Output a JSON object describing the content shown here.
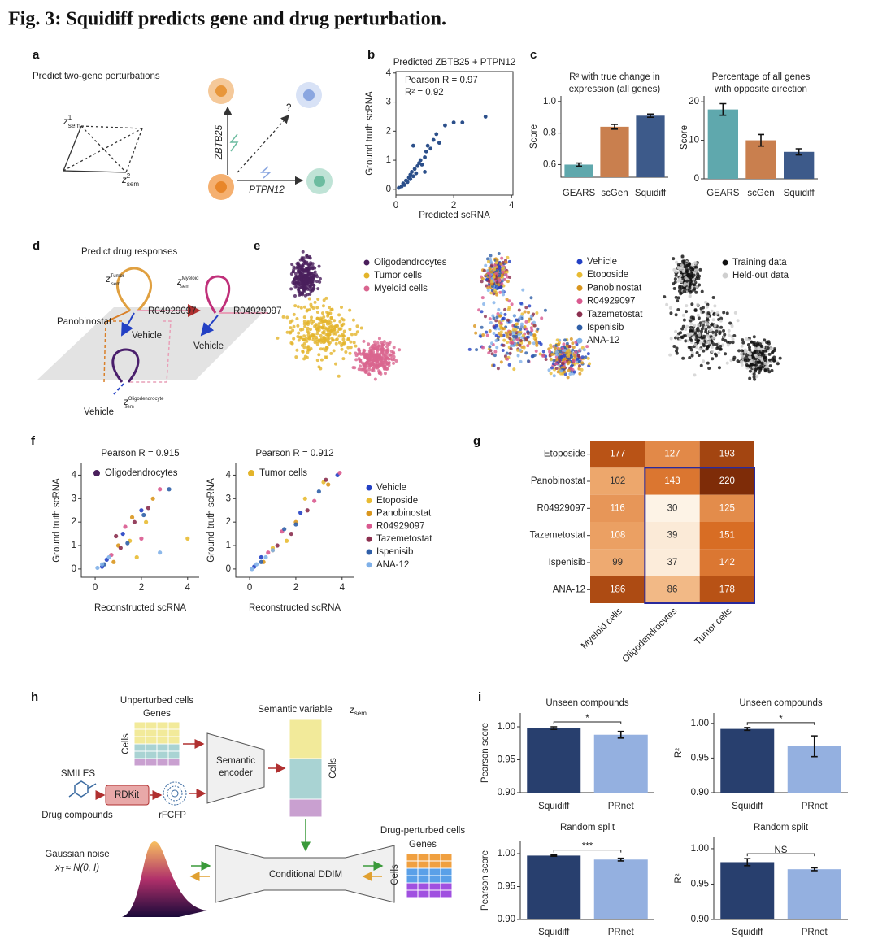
{
  "figure_title": "Fig. 3: Squidiff predicts gene and drug perturbation.",
  "panel_labels": [
    "a",
    "b",
    "c",
    "d",
    "e",
    "f",
    "g",
    "h",
    "i"
  ],
  "panel_a": {
    "heading": "Predict two-gene perturbations",
    "latents": [
      {
        "z": "z",
        "sup": "1",
        "sub": "sem"
      },
      {
        "z": "z",
        "sup": "2",
        "sub": "sem"
      }
    ],
    "genes": [
      "ZBTB25",
      "PTPN12"
    ],
    "unknown": "?"
  },
  "panel_d": {
    "heading": "Predict drug responses",
    "latents": [
      {
        "z": "z",
        "sup": "Tumor",
        "sub": "sem"
      },
      {
        "z": "z",
        "sup": "Myeloid",
        "sub": "sem"
      },
      {
        "z": "z",
        "sup": "Oligodendrocyte",
        "sub": "sem"
      }
    ],
    "labels": [
      "Panobinostat",
      "R04929097",
      "Vehicle",
      "R04929097",
      "Vehicle",
      "Vehicle"
    ]
  },
  "panel_e": {
    "cell_types": {
      "names": [
        "Oligodendrocytes",
        "Tumor cells",
        "Myeloid cells"
      ],
      "colors": [
        "#4a1f5c",
        "#e3b42a",
        "#d9658f"
      ]
    },
    "split": {
      "names": [
        "Training data",
        "Held-out data"
      ],
      "colors": [
        "#111111",
        "#cfcfcf"
      ]
    }
  },
  "drug_legend": [
    "Vehicle",
    "Etoposide",
    "Panobinostat",
    "R04929097",
    "Tazemetostat",
    "Ispenisib",
    "ANA-12"
  ],
  "panel_h": {
    "unperturbed": "Unperturbed cells",
    "genes": "Genes",
    "cells": "Cells",
    "semantic_variable": "Semantic variable",
    "z_sem": {
      "z": "z",
      "sub": "sem"
    },
    "encoder": [
      "Semantic",
      "encoder"
    ],
    "smiles": "SMILES",
    "rdkit": "RDKit",
    "drug_compounds": "Drug compounds",
    "fingerprint": "rFCFP",
    "noise": "Gaussian noise",
    "noise_formula": {
      "x": "x",
      "sub": "T",
      "rest": "≈ N(0, I)"
    },
    "ddim": "Conditional DDIM",
    "perturbed": "Drug-perturbed cells"
  },
  "chart_data": [
    {
      "type": "scatter",
      "title": "Predicted ZBTB25 + PTPN12",
      "xlabel": "Predicted scRNA",
      "ylabel": "Ground truth scRNA",
      "annotations": [
        "Pearson R = 0.97",
        "R² = 0.92"
      ],
      "color": "#2b4f8a",
      "xlim": [
        0,
        4.05
      ],
      "ylim": [
        -0.2,
        4.05
      ],
      "xticks": [
        0,
        2,
        4
      ],
      "yticks": [
        0,
        1,
        2,
        3,
        4
      ],
      "x": [
        0.1,
        0.2,
        0.25,
        0.3,
        0.35,
        0.4,
        0.45,
        0.5,
        0.5,
        0.55,
        0.6,
        0.65,
        0.7,
        0.75,
        0.8,
        0.85,
        0.9,
        1.0,
        1.05,
        1.1,
        1.2,
        1.3,
        1.4,
        1.5,
        1.7,
        2.0,
        2.3,
        3.1,
        0.6,
        1.0
      ],
      "values": [
        0.05,
        0.1,
        0.2,
        0.15,
        0.3,
        0.25,
        0.4,
        0.35,
        0.5,
        0.6,
        0.45,
        0.7,
        0.55,
        0.8,
        0.9,
        1.0,
        0.85,
        1.1,
        1.3,
        1.5,
        1.4,
        1.7,
        1.9,
        1.6,
        2.2,
        2.3,
        2.3,
        2.5,
        1.5,
        0.6
      ]
    },
    {
      "type": "bar",
      "title": [
        "R² with true change in",
        "expression (all genes)"
      ],
      "ylabel": "Score",
      "categories": [
        "GEARS",
        "scGen",
        "Squidiff"
      ],
      "values": [
        0.6,
        0.84,
        0.91
      ],
      "errors": [
        0.01,
        0.015,
        0.01
      ],
      "colors": [
        "#5fa8ad",
        "#c97f4e",
        "#3d5a8a"
      ],
      "ylim": [
        0.52,
        1.035
      ],
      "yticks": [
        0.6,
        0.8,
        {
          "value": 1,
          "label": "1.0"
        }
      ]
    },
    {
      "type": "bar",
      "title": [
        "Percentage of all genes",
        "with opposite direction"
      ],
      "ylabel": "Score",
      "categories": [
        "GEARS",
        "scGen",
        "Squidiff"
      ],
      "values": [
        18,
        10,
        7
      ],
      "errors": [
        1.5,
        1.5,
        0.8
      ],
      "colors": [
        "#5fa8ad",
        "#c97f4e",
        "#3d5a8a"
      ],
      "ylim": [
        0,
        21.5
      ],
      "yticks": [
        0,
        10,
        20
      ]
    },
    {
      "type": "scatter",
      "title": "Pearson R = 0.915",
      "xlabel": "Reconstructed scRNA",
      "ylabel": "Ground truth scRNA",
      "highlight": {
        "name": "Oligodendrocytes",
        "color": "#4a1f5c"
      },
      "xlim": [
        -0.6,
        4.5
      ],
      "ylim": [
        -0.35,
        4.5
      ],
      "xticks": [
        0,
        2,
        4
      ],
      "yticks": [
        0,
        1,
        2,
        3,
        4
      ],
      "series": [
        {
          "color": "#2340c4",
          "x": [
            0.5,
            1.2,
            2,
            0.3
          ],
          "values": [
            0.4,
            1.5,
            2.5,
            0.1
          ]
        },
        {
          "color": "#e8bb32",
          "x": [
            1.5,
            2.2,
            4,
            1.8
          ],
          "values": [
            1.2,
            2.0,
            1.3,
            0.5
          ]
        },
        {
          "color": "#d9961e",
          "x": [
            1,
            2.5,
            1.6,
            0.8
          ],
          "values": [
            1.0,
            3.0,
            2.2,
            0.3
          ]
        },
        {
          "color": "#d9598f",
          "x": [
            1.3,
            2.0,
            0.7,
            2.8
          ],
          "values": [
            1.8,
            1.3,
            0.6,
            3.4
          ]
        },
        {
          "color": "#8b2f4f",
          "x": [
            1.1,
            1.7,
            0.9,
            2.3
          ],
          "values": [
            0.9,
            2.0,
            1.4,
            2.6
          ]
        },
        {
          "color": "#2f5fa8",
          "x": [
            0.4,
            1.4,
            3.2,
            2.1
          ],
          "values": [
            0.2,
            1.1,
            3.4,
            2.3
          ]
        },
        {
          "color": "#7fb0e8",
          "x": [
            0.1,
            0.3,
            0.6,
            2.8
          ],
          "values": [
            0.05,
            0.2,
            0.5,
            0.7
          ]
        }
      ]
    },
    {
      "type": "scatter",
      "title": "Pearson R = 0.912",
      "xlabel": "Reconstructed scRNA",
      "ylabel": "Ground truth scRNA",
      "highlight": {
        "name": "Tumor cells",
        "color": "#e3b42a"
      },
      "xlim": [
        -0.6,
        4.5
      ],
      "ylim": [
        -0.35,
        4.5
      ],
      "xticks": [
        0,
        2,
        4
      ],
      "yticks": [
        0,
        1,
        2,
        3,
        4
      ],
      "series": [
        {
          "color": "#2340c4",
          "x": [
            0.5,
            2.2,
            3.8,
            0.2
          ],
          "values": [
            0.5,
            2.4,
            4.0,
            0.1
          ]
        },
        {
          "color": "#e8bb32",
          "x": [
            1.6,
            2.4,
            1.0,
            3.2
          ],
          "values": [
            1.2,
            3.0,
            0.9,
            3.7
          ]
        },
        {
          "color": "#d9961e",
          "x": [
            1,
            2,
            3.4,
            0.6
          ],
          "values": [
            0.8,
            2.0,
            3.6,
            0.3
          ]
        },
        {
          "color": "#d9598f",
          "x": [
            1.4,
            2.8,
            3.9,
            0.8
          ],
          "values": [
            1.6,
            2.9,
            4.1,
            0.7
          ]
        },
        {
          "color": "#8b2f4f",
          "x": [
            1.2,
            2.5,
            1.8,
            3.3
          ],
          "values": [
            1.0,
            2.5,
            1.5,
            3.8
          ]
        },
        {
          "color": "#2f5fa8",
          "x": [
            0.5,
            2.0,
            3.0,
            1.5
          ],
          "values": [
            0.3,
            1.9,
            3.3,
            1.7
          ]
        },
        {
          "color": "#7fb0e8",
          "x": [
            0.1,
            0.3,
            0.7,
            1.0
          ],
          "values": [
            0.0,
            0.2,
            0.5,
            0.8
          ]
        }
      ]
    },
    {
      "type": "heatmap",
      "rows": [
        "Etoposide",
        "Panobinostat",
        "R04929097",
        "Tazemetostat",
        "Ispenisib",
        "ANA-12"
      ],
      "columns": [
        "Myeloid cells",
        "Oligodendrocytes",
        "Tumor cells"
      ],
      "values": [
        [
          177,
          127,
          193
        ],
        [
          102,
          143,
          220
        ],
        [
          116,
          30,
          125
        ],
        [
          108,
          39,
          151
        ],
        [
          99,
          37,
          142
        ],
        [
          186,
          86,
          178
        ]
      ],
      "colors": [
        "#fdf3e6",
        "#f1b179",
        "#d5661c",
        "#7e2c08"
      ]
    },
    {
      "type": "bar",
      "title": "Unseen compounds",
      "ylabel": "Pearson score",
      "categories": [
        "Squidiff",
        "PRnet"
      ],
      "values": [
        0.998,
        0.988
      ],
      "errors": [
        0.002,
        0.005
      ],
      "colors": [
        "#283f6e",
        "#94b0e0"
      ],
      "significance": "*",
      "ylim": [
        0.9,
        1.021
      ],
      "yticks": [
        {
          "value": 0.9,
          "label": "0.90"
        },
        0.95,
        {
          "value": 1,
          "label": "1.00"
        }
      ]
    },
    {
      "type": "bar",
      "title": "Unseen compounds",
      "ylabel": "R²",
      "categories": [
        "Squidiff",
        "PRnet"
      ],
      "values": [
        0.992,
        0.967
      ],
      "errors": [
        0.002,
        0.015
      ],
      "colors": [
        "#283f6e",
        "#94b0e0"
      ],
      "significance": "*",
      "ylim": [
        0.9,
        1.015
      ],
      "yticks": [
        {
          "value": 0.9,
          "label": "0.90"
        },
        0.95,
        {
          "value": 1,
          "label": "1.00"
        }
      ]
    },
    {
      "type": "bar",
      "title": "Random split",
      "ylabel": "Pearson score",
      "categories": [
        "Squidiff",
        "PRnet"
      ],
      "values": [
        0.997,
        0.991
      ],
      "errors": [
        0.001,
        0.002
      ],
      "colors": [
        "#283f6e",
        "#94b0e0"
      ],
      "significance": "***",
      "ylim": [
        0.9,
        1.0185
      ],
      "yticks": [
        {
          "value": 0.9,
          "label": "0.90"
        },
        0.95,
        {
          "value": 1,
          "label": "1.00"
        }
      ]
    },
    {
      "type": "bar",
      "title": "Random split",
      "ylabel": "R²",
      "categories": [
        "Squidiff",
        "PRnet"
      ],
      "values": [
        0.981,
        0.971
      ],
      "errors": [
        0.005,
        0.002
      ],
      "colors": [
        "#283f6e",
        "#94b0e0"
      ],
      "significance": "NS",
      "ylim": [
        0.9,
        1.016
      ],
      "yticks": [
        {
          "value": 0.9,
          "label": "0.90"
        },
        0.95,
        {
          "value": 1,
          "label": "1.00"
        }
      ]
    }
  ]
}
